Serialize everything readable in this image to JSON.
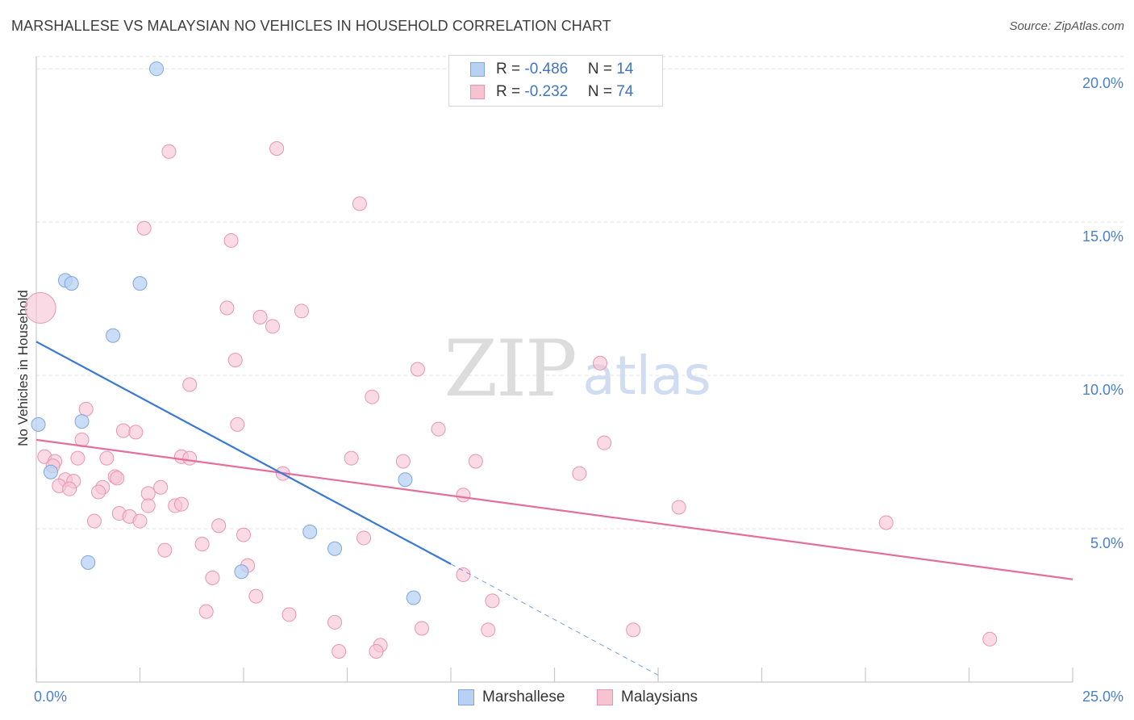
{
  "title": "MARSHALLESE VS MALAYSIAN NO VEHICLES IN HOUSEHOLD CORRELATION CHART",
  "source": "Source: ZipAtlas.com",
  "watermark": {
    "zip": "ZIP",
    "atlas": "atlas"
  },
  "legend": {
    "rows": [
      {
        "r_label": "R = ",
        "r_value": "-0.486",
        "n_label": "N = ",
        "n_value": "14"
      },
      {
        "r_label": "R = ",
        "r_value": "-0.232",
        "n_label": "N = ",
        "n_value": "74"
      }
    ]
  },
  "bottom_legend": {
    "series1": "Marshallese",
    "series2": "Malaysians"
  },
  "colors": {
    "blue_fill": "#b8d1f3",
    "blue_stroke": "#7fa6dc",
    "blue_line": "#3a78d4",
    "pink_fill": "#f6c3d3",
    "pink_stroke": "#e894b1",
    "pink_line": "#e3709a",
    "tick_label": "#4a7fd0"
  },
  "chart_data": {
    "type": "scatter",
    "title": "MARSHALLESE VS MALAYSIAN NO VEHICLES IN HOUSEHOLD CORRELATION CHART",
    "xlabel": "",
    "ylabel": "No Vehicles in Household",
    "xlim": [
      0,
      25
    ],
    "ylim": [
      0,
      20.4
    ],
    "x_tick_labels": [
      "0.0%",
      "25.0%"
    ],
    "y_ticks": [
      5,
      10,
      15,
      20
    ],
    "y_tick_labels": [
      "5.0%",
      "10.0%",
      "15.0%",
      "20.0%"
    ],
    "series": [
      {
        "name": "Marshallese",
        "r": -0.486,
        "n": 14,
        "points": [
          [
            2.9,
            20.0
          ],
          [
            0.7,
            13.1
          ],
          [
            0.85,
            13.0
          ],
          [
            2.5,
            13.0
          ],
          [
            1.85,
            11.3
          ],
          [
            0.05,
            8.4
          ],
          [
            1.1,
            8.5
          ],
          [
            0.35,
            6.85
          ],
          [
            8.9,
            6.6
          ],
          [
            6.6,
            4.9
          ],
          [
            7.2,
            4.35
          ],
          [
            1.25,
            3.9
          ],
          [
            4.95,
            3.6
          ],
          [
            9.1,
            2.75
          ]
        ],
        "trend": {
          "x0": 0,
          "y0": 11.1,
          "x1": 10.0,
          "y1": 3.85,
          "dash_to_x": 15.0
        }
      },
      {
        "name": "Malaysians",
        "r": -0.232,
        "n": 74,
        "points": [
          [
            0.1,
            12.2
          ],
          [
            3.2,
            17.3
          ],
          [
            5.8,
            17.4
          ],
          [
            7.8,
            15.6
          ],
          [
            2.6,
            14.8
          ],
          [
            4.7,
            14.4
          ],
          [
            4.6,
            12.2
          ],
          [
            5.4,
            11.9
          ],
          [
            6.4,
            12.1
          ],
          [
            5.7,
            11.6
          ],
          [
            4.8,
            10.5
          ],
          [
            9.2,
            10.2
          ],
          [
            13.6,
            10.4
          ],
          [
            3.7,
            9.7
          ],
          [
            8.1,
            9.3
          ],
          [
            1.2,
            8.9
          ],
          [
            4.85,
            8.4
          ],
          [
            9.7,
            8.25
          ],
          [
            2.1,
            8.2
          ],
          [
            2.4,
            8.15
          ],
          [
            1.1,
            7.9
          ],
          [
            13.7,
            7.8
          ],
          [
            0.2,
            7.35
          ],
          [
            0.45,
            7.2
          ],
          [
            1.0,
            7.3
          ],
          [
            1.7,
            7.3
          ],
          [
            3.5,
            7.35
          ],
          [
            3.7,
            7.3
          ],
          [
            7.6,
            7.3
          ],
          [
            8.85,
            7.2
          ],
          [
            10.6,
            7.2
          ],
          [
            0.4,
            7.05
          ],
          [
            13.1,
            6.8
          ],
          [
            5.95,
            6.8
          ],
          [
            1.9,
            6.7
          ],
          [
            1.95,
            6.65
          ],
          [
            0.7,
            6.6
          ],
          [
            0.9,
            6.55
          ],
          [
            0.55,
            6.4
          ],
          [
            0.8,
            6.3
          ],
          [
            1.6,
            6.35
          ],
          [
            3.0,
            6.35
          ],
          [
            1.5,
            6.2
          ],
          [
            2.7,
            6.15
          ],
          [
            10.3,
            6.1
          ],
          [
            3.35,
            5.75
          ],
          [
            3.5,
            5.8
          ],
          [
            2.7,
            5.75
          ],
          [
            15.5,
            5.7
          ],
          [
            2.0,
            5.5
          ],
          [
            2.25,
            5.4
          ],
          [
            2.5,
            5.25
          ],
          [
            1.4,
            5.25
          ],
          [
            20.5,
            5.2
          ],
          [
            4.4,
            5.1
          ],
          [
            5.0,
            4.8
          ],
          [
            7.9,
            4.7
          ],
          [
            4.0,
            4.5
          ],
          [
            3.1,
            4.3
          ],
          [
            5.1,
            3.8
          ],
          [
            4.25,
            3.4
          ],
          [
            10.3,
            3.5
          ],
          [
            5.3,
            2.8
          ],
          [
            11.0,
            2.65
          ],
          [
            4.1,
            2.3
          ],
          [
            6.1,
            2.2
          ],
          [
            7.2,
            1.95
          ],
          [
            9.3,
            1.75
          ],
          [
            10.9,
            1.7
          ],
          [
            14.4,
            1.7
          ],
          [
            23.0,
            1.4
          ],
          [
            8.3,
            1.2
          ],
          [
            7.3,
            1.0
          ],
          [
            8.2,
            1.0
          ]
        ],
        "trend": {
          "x0": 0,
          "y0": 7.9,
          "x1": 25.0,
          "y1": 3.35
        }
      }
    ]
  }
}
